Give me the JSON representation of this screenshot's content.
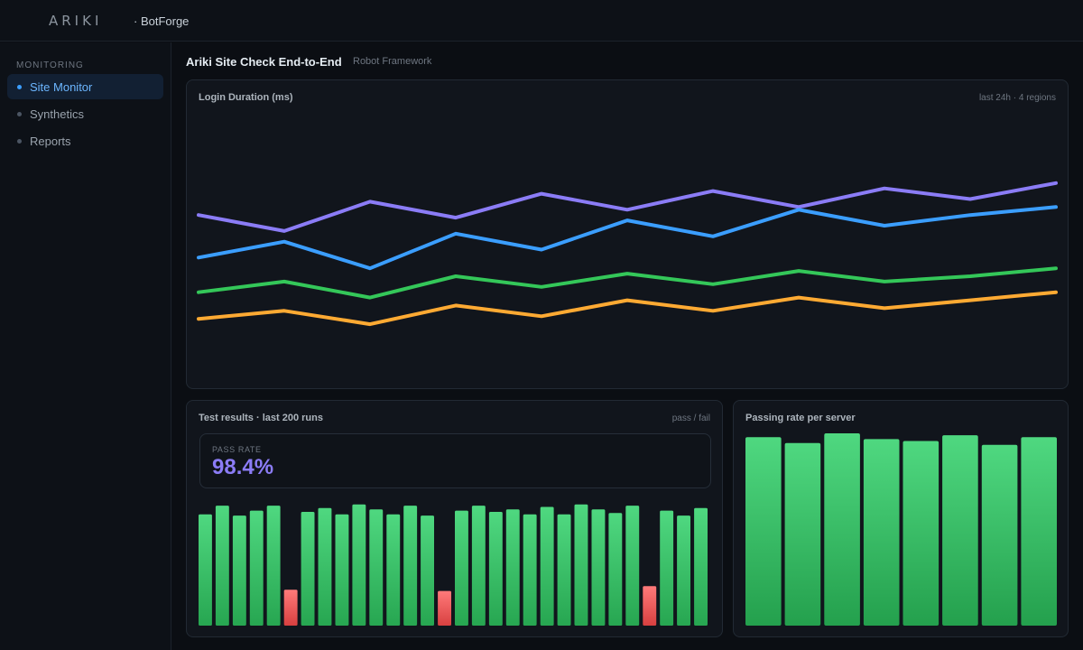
{
  "header": {
    "logo": "ARIKI",
    "brand": "· BotForge"
  },
  "sidebar": {
    "heading": "MONITORING",
    "items": [
      {
        "label": "Site Monitor",
        "active": true
      },
      {
        "label": "Synthetics",
        "active": false
      },
      {
        "label": "Reports",
        "active": false
      }
    ]
  },
  "page": {
    "title": "Ariki Site Check End-to-End",
    "subtitle": "Robot Framework"
  },
  "colors": {
    "pass": "#3ccf6e",
    "fail": "#f06262",
    "purple": "#8b7cf6",
    "blue": "#3b9eff",
    "green": "#34c759",
    "orange": "#ffaa33"
  },
  "login_chart": {
    "title": "Login Duration (ms)",
    "meta": "last 24h · 4 regions"
  },
  "results": {
    "title": "Test results · last 200 runs",
    "meta": "pass / fail",
    "pass_rate_label": "PASS RATE",
    "pass_rate_value": "98.4%"
  },
  "servers": {
    "title": "Passing rate per server"
  },
  "chart_data": [
    {
      "type": "line",
      "title": "Login Duration (ms)",
      "x": [
        0,
        1,
        2,
        3,
        4,
        5,
        6,
        7,
        8,
        9,
        10
      ],
      "ylim": [
        0,
        100
      ],
      "grid": false,
      "series": [
        {
          "color": "#8b7cf6",
          "values": [
            63,
            57,
            68,
            62,
            71,
            65,
            72,
            66,
            73,
            69,
            75
          ]
        },
        {
          "color": "#3b9eff",
          "values": [
            47,
            53,
            43,
            56,
            50,
            61,
            55,
            65,
            59,
            63,
            66
          ]
        },
        {
          "color": "#34c759",
          "values": [
            34,
            38,
            32,
            40,
            36,
            41,
            37,
            42,
            38,
            40,
            43
          ]
        },
        {
          "color": "#ffaa33",
          "values": [
            24,
            27,
            22,
            29,
            25,
            31,
            27,
            32,
            28,
            31,
            34
          ]
        }
      ]
    },
    {
      "type": "bar",
      "title": "Test results · last 200 runs",
      "ylim": [
        0,
        100
      ],
      "values": [
        90,
        97,
        89,
        93,
        97,
        29,
        92,
        95,
        90,
        98,
        94,
        90,
        97,
        89,
        28,
        93,
        97,
        92,
        94,
        90,
        96,
        90,
        98,
        94,
        91,
        97,
        32,
        93,
        89,
        95
      ],
      "status": [
        "pass",
        "pass",
        "pass",
        "pass",
        "pass",
        "fail",
        "pass",
        "pass",
        "pass",
        "pass",
        "pass",
        "pass",
        "pass",
        "pass",
        "fail",
        "pass",
        "pass",
        "pass",
        "pass",
        "pass",
        "pass",
        "pass",
        "pass",
        "pass",
        "pass",
        "pass",
        "fail",
        "pass",
        "pass",
        "pass"
      ]
    },
    {
      "type": "bar",
      "title": "Passing rate per server",
      "ylim": [
        0,
        100
      ],
      "values": [
        98,
        95,
        100,
        97,
        96,
        99,
        94,
        98
      ]
    }
  ]
}
